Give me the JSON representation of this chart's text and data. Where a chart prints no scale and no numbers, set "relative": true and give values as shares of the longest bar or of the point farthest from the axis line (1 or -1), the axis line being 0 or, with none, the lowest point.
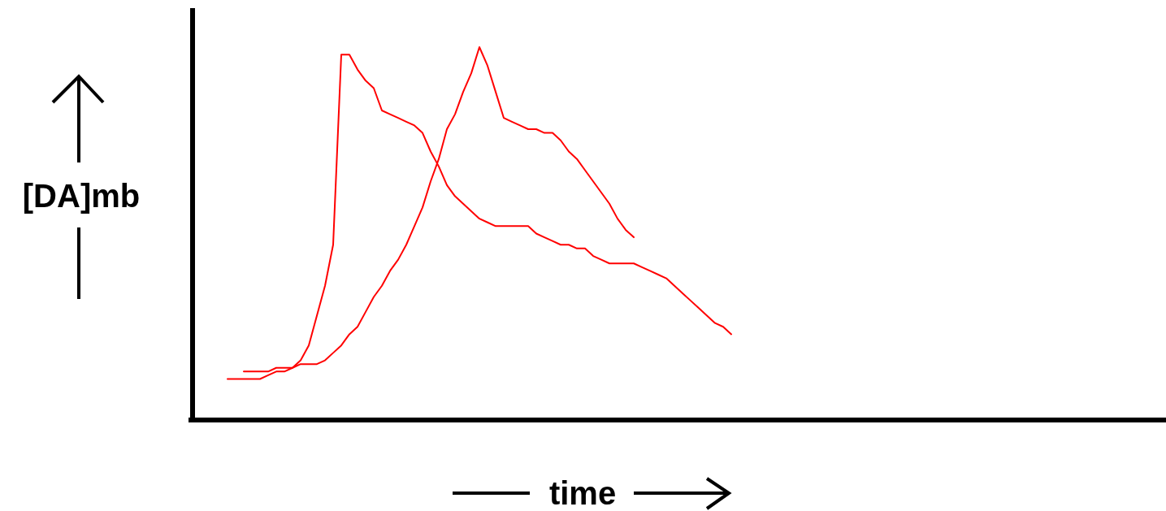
{
  "chart_data": {
    "type": "line",
    "relative": true,
    "xlabel": "time",
    "ylabel": "[DA]mb",
    "categories": [
      null,
      null,
      null,
      null,
      null,
      null,
      null,
      null,
      null,
      null,
      null,
      null,
      null,
      null,
      null,
      null,
      null,
      null,
      null,
      null,
      null,
      null,
      null,
      null,
      null,
      null,
      null,
      null,
      null,
      null,
      null,
      null,
      null,
      null,
      null,
      null,
      null,
      null,
      null,
      null,
      null,
      null,
      null,
      null,
      null,
      null,
      null,
      null,
      null,
      null,
      null,
      null,
      null,
      null,
      null,
      null,
      null,
      null,
      null,
      null,
      null,
      null,
      null,
      null,
      null,
      null,
      null,
      null,
      null,
      null,
      null,
      null,
      null,
      null,
      null,
      null,
      null,
      null,
      null,
      null,
      null,
      null,
      null,
      null,
      null,
      null,
      null,
      null,
      null,
      null,
      null,
      null,
      null,
      null,
      null,
      null,
      null,
      null,
      null,
      null,
      null,
      null,
      null,
      null,
      null,
      null,
      null,
      null,
      null,
      null,
      null,
      null,
      null,
      null,
      null,
      null,
      null,
      null,
      null,
      null
    ],
    "series": [
      {
        "color": "#ff0000",
        "values": [
          null,
          null,
          null,
          null,
          0.11,
          0.11,
          0.11,
          0.11,
          0.11,
          0.12,
          0.13,
          0.13,
          0.14,
          0.16,
          0.2,
          0.28,
          0.36,
          0.47,
          0.98,
          0.98,
          0.94,
          0.91,
          0.89,
          0.83,
          0.82,
          0.81,
          0.8,
          0.79,
          0.77,
          0.72,
          0.68,
          0.63,
          0.6,
          0.58,
          0.56,
          0.54,
          0.53,
          0.52,
          0.52,
          0.52,
          0.52,
          0.52,
          0.5,
          0.49,
          0.48,
          0.47,
          0.47,
          0.46,
          0.46,
          0.44,
          0.43,
          0.42,
          0.42,
          0.42,
          0.42,
          0.41,
          0.4,
          0.39,
          0.38,
          0.36,
          0.34,
          0.32,
          0.3,
          0.28,
          0.26,
          0.25,
          0.23,
          null,
          null,
          null,
          null,
          null,
          null,
          null,
          null,
          null,
          null,
          null,
          null,
          null,
          null,
          null,
          null,
          null,
          null,
          null,
          null,
          null,
          null,
          null,
          null,
          null,
          null,
          null,
          null,
          null,
          null,
          null,
          null,
          null,
          null,
          null,
          null,
          null,
          null,
          null,
          null,
          null,
          null,
          null,
          null,
          null,
          null,
          null,
          null,
          null,
          null,
          null,
          null,
          null
        ]
      },
      {
        "color": "#ff0000",
        "values": [
          null,
          null,
          null,
          null,
          null,
          null,
          0.13,
          0.13,
          0.13,
          0.13,
          0.14,
          0.14,
          0.14,
          0.15,
          0.15,
          0.15,
          0.16,
          0.18,
          0.2,
          0.23,
          0.25,
          0.29,
          0.33,
          0.36,
          0.4,
          0.43,
          0.47,
          0.52,
          0.57,
          0.64,
          0.7,
          0.78,
          0.82,
          0.88,
          0.93,
          1,
          0.95,
          0.88,
          0.81,
          0.8,
          0.79,
          0.78,
          0.78,
          0.77,
          0.77,
          0.75,
          0.72,
          0.7,
          0.67,
          0.64,
          0.61,
          0.58,
          0.54,
          0.51,
          0.49,
          null,
          null,
          null,
          null,
          null,
          null,
          null,
          null,
          null,
          null,
          null,
          null,
          null,
          null,
          null,
          null,
          null,
          null,
          null,
          null,
          null,
          null,
          null,
          null,
          null,
          null,
          null,
          null,
          null,
          null,
          null,
          null,
          null,
          null,
          null,
          null,
          null,
          null,
          null,
          null,
          null,
          null,
          null,
          null,
          null,
          null,
          null,
          null,
          null,
          null,
          null,
          null,
          null,
          null,
          null,
          null,
          null,
          null,
          null,
          null,
          null,
          null,
          null,
          null,
          null
        ]
      }
    ]
  }
}
